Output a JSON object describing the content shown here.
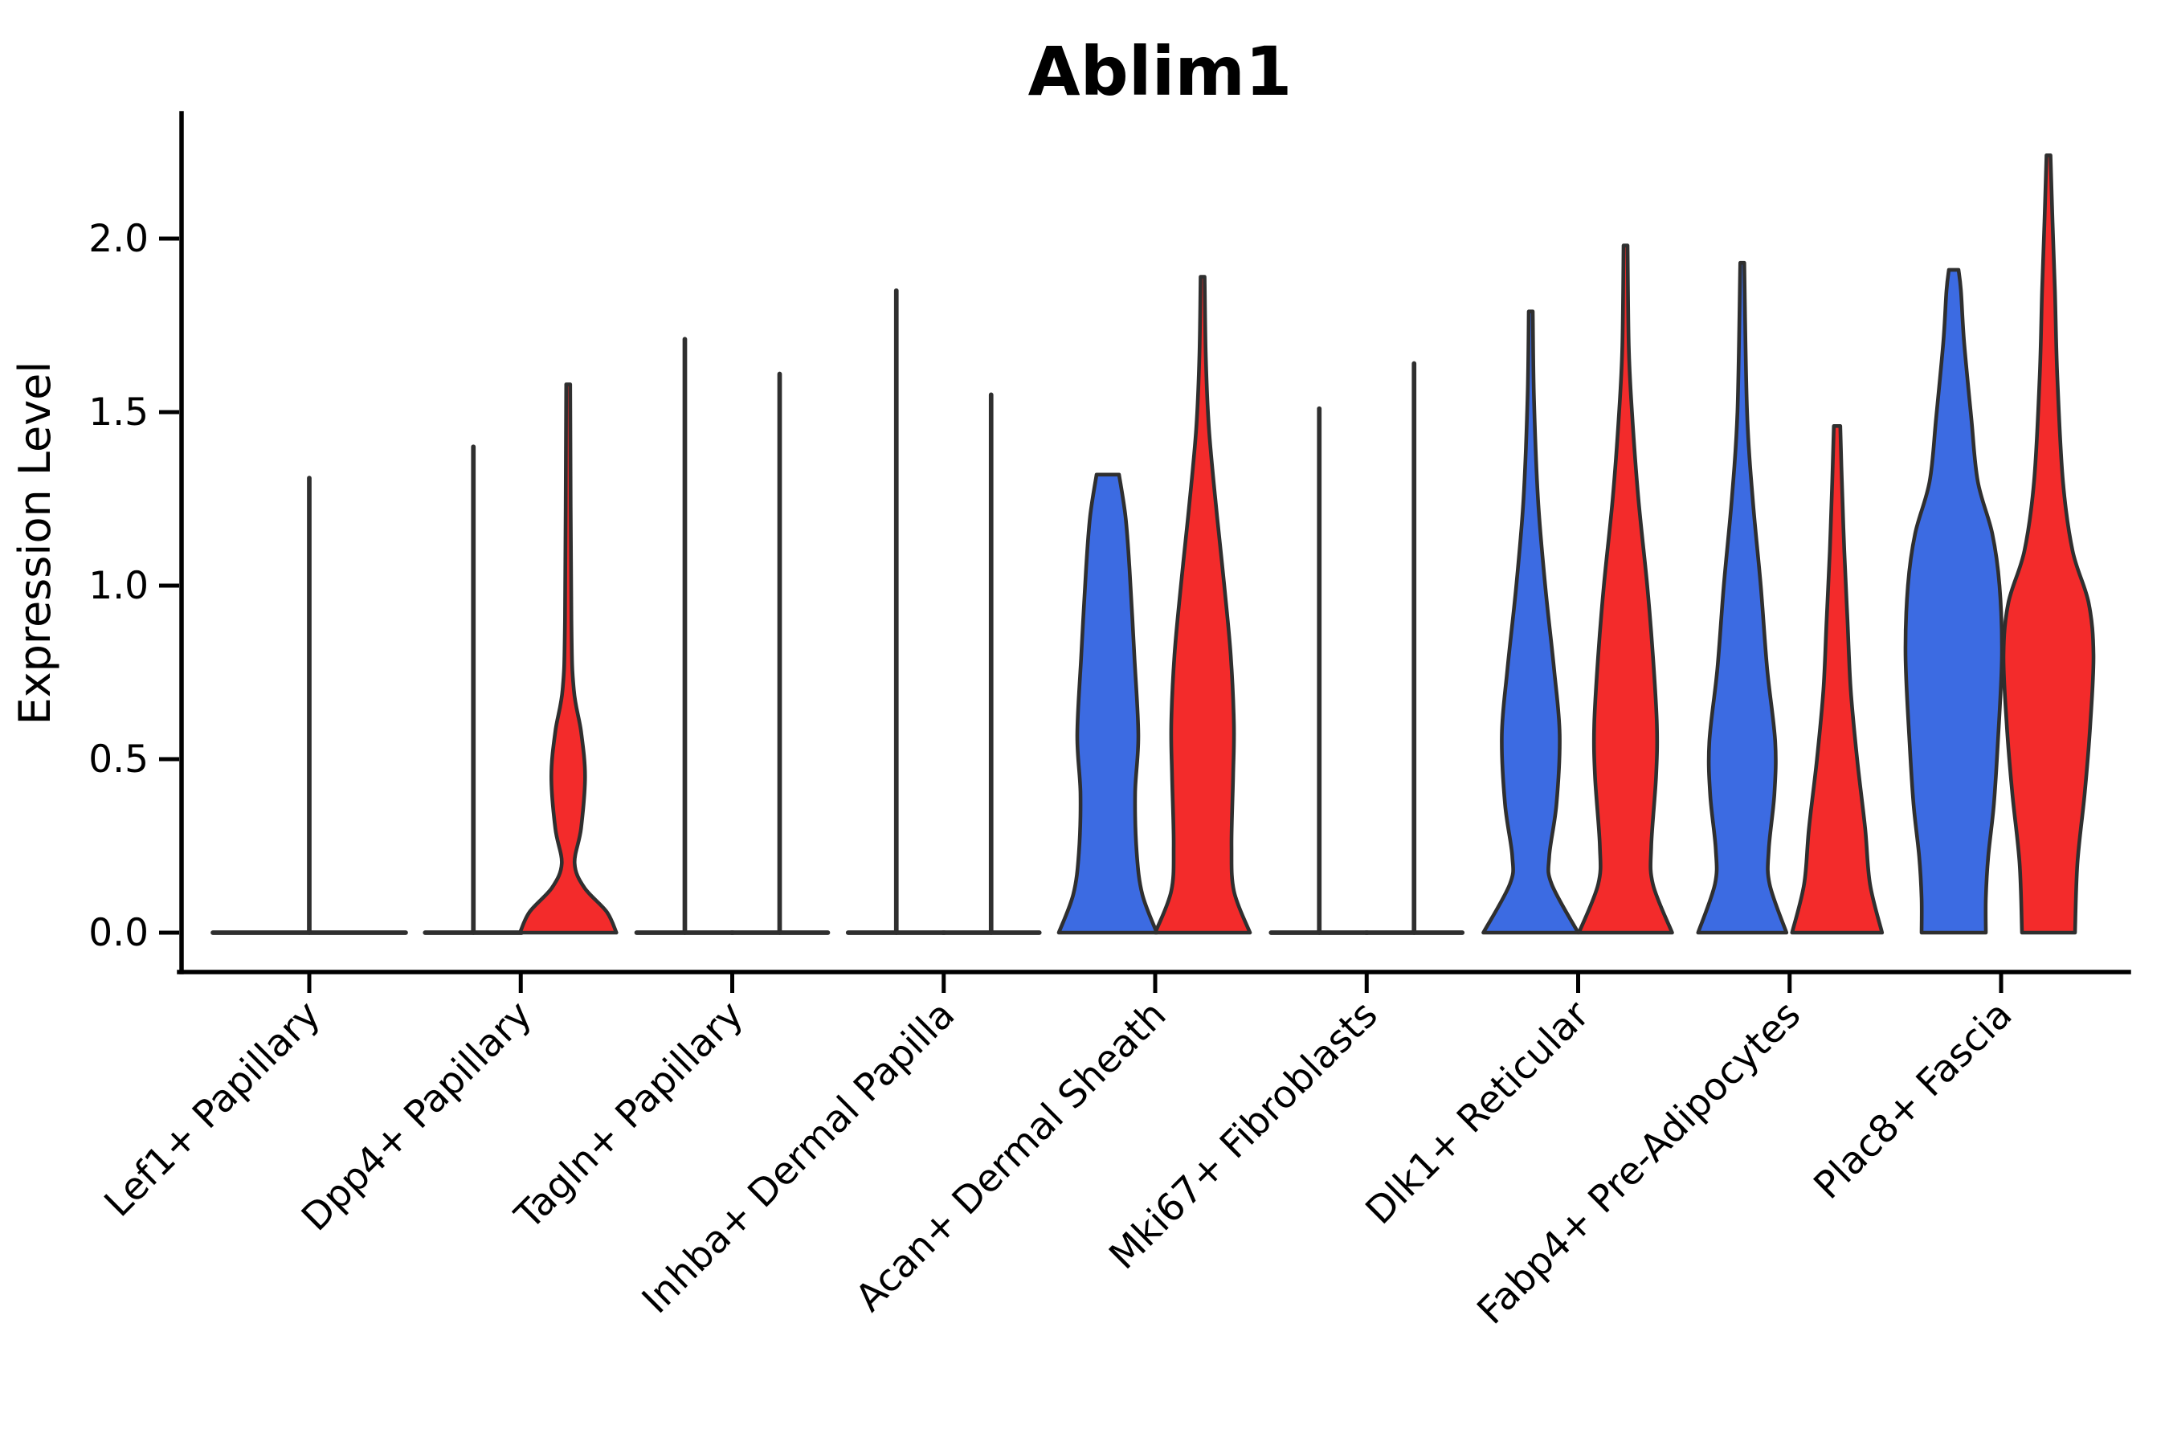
{
  "title": "Ablim1",
  "axes": {
    "ylabel": "Expression Level",
    "ytick_labels": [
      "0.0",
      "0.5",
      "1.0",
      "1.5",
      "2.0"
    ],
    "ytick_values": [
      0,
      0.5,
      1,
      1.5,
      2
    ]
  },
  "colors": {
    "blue": "#3c6be2",
    "red": "#f32b2b",
    "outline": "#2f2f2f",
    "axis": "#000000",
    "background": "#ffffff"
  },
  "chart_data": {
    "type": "violin",
    "title": "Ablim1",
    "xlabel": "",
    "ylabel": "Expression Level",
    "ylim": [
      0,
      2.25
    ],
    "yticks": [
      0,
      0.5,
      1,
      1.5,
      2
    ],
    "grid": false,
    "legend": "none",
    "split_violin": true,
    "split_colors": {
      "left": "#3c6be2",
      "right": "#f32b2b"
    },
    "categories": [
      "Lef1+ Papillary",
      "Dpp4+ Papillary",
      "Tagln+ Papillary",
      "Inhba+ Dermal Papilla",
      "Acan+ Dermal Sheath",
      "Mki67+ Fibroblasts",
      "Dlk1+ Reticular",
      "Fabp4+ Pre-Adipocytes",
      "Plac8+ Fascia"
    ],
    "groups": [
      {
        "category": "Lef1+ Papillary",
        "violins": [
          {
            "side": "center",
            "color": null,
            "collapsed": true,
            "max": 1.31,
            "base_halfwidth": 120
          }
        ]
      },
      {
        "category": "Dpp4+ Papillary",
        "violins": [
          {
            "side": "left",
            "color": null,
            "collapsed": true,
            "max": 1.4,
            "base_halfwidth": 60
          },
          {
            "side": "right",
            "color": "red",
            "collapsed": false,
            "max": 1.58,
            "profile": [
              [
                0,
                60
              ],
              [
                0.06,
                48
              ],
              [
                0.13,
                20
              ],
              [
                0.2,
                8
              ],
              [
                0.3,
                16
              ],
              [
                0.45,
                21
              ],
              [
                0.58,
                16
              ],
              [
                0.7,
                7
              ],
              [
                0.9,
                4
              ],
              [
                1.58,
                2.5
              ]
            ]
          }
        ]
      },
      {
        "category": "Tagln+ Papillary",
        "violins": [
          {
            "side": "left",
            "color": null,
            "collapsed": true,
            "max": 1.71,
            "base_halfwidth": 60
          },
          {
            "side": "right",
            "color": null,
            "collapsed": true,
            "max": 1.61,
            "base_halfwidth": 60
          }
        ]
      },
      {
        "category": "Inhba+ Dermal Papilla",
        "violins": [
          {
            "side": "left",
            "color": null,
            "collapsed": true,
            "max": 1.85,
            "base_halfwidth": 60
          },
          {
            "side": "right",
            "color": null,
            "collapsed": true,
            "max": 1.55,
            "base_halfwidth": 60
          }
        ]
      },
      {
        "category": "Acan+ Dermal Sheath",
        "violins": [
          {
            "side": "left",
            "color": "blue",
            "collapsed": false,
            "max": 1.32,
            "profile": [
              [
                0,
                61
              ],
              [
                0.11,
                43
              ],
              [
                0.23,
                36
              ],
              [
                0.4,
                34
              ],
              [
                0.57,
                38
              ],
              [
                0.8,
                33
              ],
              [
                1.05,
                27
              ],
              [
                1.2,
                22
              ],
              [
                1.32,
                14
              ]
            ]
          },
          {
            "side": "right",
            "color": "red",
            "collapsed": false,
            "max": 1.89,
            "profile": [
              [
                0,
                59
              ],
              [
                0.12,
                39
              ],
              [
                0.25,
                36
              ],
              [
                0.45,
                38
              ],
              [
                0.6,
                39
              ],
              [
                0.8,
                35
              ],
              [
                1.0,
                27
              ],
              [
                1.2,
                18
              ],
              [
                1.45,
                8
              ],
              [
                1.66,
                4
              ],
              [
                1.89,
                2.5
              ]
            ]
          }
        ]
      },
      {
        "category": "Mki67+ Fibroblasts",
        "violins": [
          {
            "side": "left",
            "color": null,
            "collapsed": true,
            "max": 1.51,
            "base_halfwidth": 60
          },
          {
            "side": "right",
            "color": null,
            "collapsed": true,
            "max": 1.64,
            "base_halfwidth": 60
          }
        ]
      },
      {
        "category": "Dlk1+ Reticular",
        "violins": [
          {
            "side": "left",
            "color": "blue",
            "collapsed": false,
            "max": 1.79,
            "profile": [
              [
                0,
                59
              ],
              [
                0.14,
                26
              ],
              [
                0.22,
                23
              ],
              [
                0.37,
                32
              ],
              [
                0.57,
                36
              ],
              [
                0.76,
                29
              ],
              [
                1.0,
                18
              ],
              [
                1.25,
                9
              ],
              [
                1.54,
                4
              ],
              [
                1.79,
                2.5
              ]
            ]
          },
          {
            "side": "right",
            "color": "red",
            "collapsed": false,
            "max": 1.98,
            "profile": [
              [
                0,
                58
              ],
              [
                0.14,
                34
              ],
              [
                0.25,
                32
              ],
              [
                0.45,
                38
              ],
              [
                0.6,
                39
              ],
              [
                0.8,
                34
              ],
              [
                1.0,
                27
              ],
              [
                1.25,
                16
              ],
              [
                1.5,
                8
              ],
              [
                1.69,
                4
              ],
              [
                1.98,
                2.5
              ]
            ]
          }
        ]
      },
      {
        "category": "Fabp4+ Pre-Adipocytes",
        "violins": [
          {
            "side": "left",
            "color": "blue",
            "collapsed": false,
            "max": 1.93,
            "profile": [
              [
                0,
                55
              ],
              [
                0.14,
                34
              ],
              [
                0.24,
                33
              ],
              [
                0.4,
                40
              ],
              [
                0.55,
                41
              ],
              [
                0.76,
                31
              ],
              [
                1.0,
                23
              ],
              [
                1.25,
                13
              ],
              [
                1.5,
                6
              ],
              [
                1.93,
                2.5
              ]
            ]
          },
          {
            "side": "right",
            "color": "red",
            "collapsed": false,
            "max": 1.46,
            "profile": [
              [
                0,
                56
              ],
              [
                0.14,
                41
              ],
              [
                0.3,
                35
              ],
              [
                0.5,
                25
              ],
              [
                0.7,
                17
              ],
              [
                0.9,
                13
              ],
              [
                1.1,
                9
              ],
              [
                1.3,
                6
              ],
              [
                1.46,
                4
              ]
            ]
          }
        ]
      },
      {
        "category": "Plac8+ Fascia",
        "violins": [
          {
            "side": "left",
            "color": "blue",
            "collapsed": false,
            "max": 1.91,
            "profile": [
              [
                0,
                40
              ],
              [
                0.1,
                40
              ],
              [
                0.22,
                43
              ],
              [
                0.37,
                50
              ],
              [
                0.55,
                55
              ],
              [
                0.8,
                60
              ],
              [
                1.0,
                57
              ],
              [
                1.15,
                48
              ],
              [
                1.3,
                30
              ],
              [
                1.48,
                22
              ],
              [
                1.7,
                13
              ],
              [
                1.85,
                9
              ],
              [
                1.91,
                6
              ]
            ]
          },
          {
            "side": "right",
            "color": "red",
            "collapsed": false,
            "max": 2.24,
            "profile": [
              [
                0,
                33
              ],
              [
                0.2,
                36
              ],
              [
                0.4,
                45
              ],
              [
                0.6,
                52
              ],
              [
                0.8,
                56
              ],
              [
                0.95,
                50
              ],
              [
                1.1,
                30
              ],
              [
                1.3,
                18
              ],
              [
                1.6,
                11
              ],
              [
                1.85,
                8
              ],
              [
                2.05,
                5
              ],
              [
                2.24,
                2.5
              ]
            ]
          }
        ]
      }
    ]
  }
}
